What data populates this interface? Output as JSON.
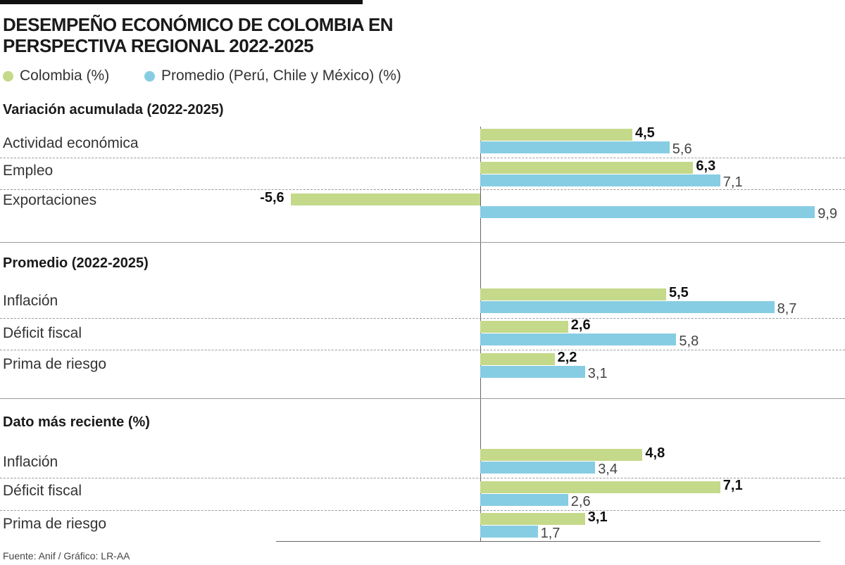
{
  "chart_data": {
    "type": "bar",
    "orientation": "horizontal",
    "title": "DESEMPEÑO ECONÓMICO DE COLOMBIA EN PERSPECTIVA REGIONAL 2022-2025",
    "legend": [
      {
        "name": "Colombia (%)",
        "color": "#c5d98a"
      },
      {
        "name": "Promedio (Perú, Chile y México) (%)",
        "color": "#86cde3"
      }
    ],
    "legend_placement": "top-left",
    "grid": false,
    "sections": [
      {
        "heading": "Variación acumulada (2022-2025)",
        "categories": [
          "Actividad económica",
          "Empleo",
          "Exportaciones"
        ],
        "series": [
          {
            "name": "Colombia (%)",
            "values": [
              4.5,
              6.3,
              -5.6
            ],
            "labels": [
              "4,5",
              "6,3",
              "-5,6"
            ]
          },
          {
            "name": "Promedio (Perú, Chile y México) (%)",
            "values": [
              5.6,
              7.1,
              9.9
            ],
            "labels": [
              "5,6",
              "7,1",
              "9,9"
            ]
          }
        ]
      },
      {
        "heading": "Promedio (2022-2025)",
        "categories": [
          "Inflación",
          "Déficit fiscal",
          "Prima de riesgo"
        ],
        "series": [
          {
            "name": "Colombia (%)",
            "values": [
              5.5,
              2.6,
              2.2
            ],
            "labels": [
              "5,5",
              "2,6",
              "2,2"
            ]
          },
          {
            "name": "Promedio (Perú, Chile y México) (%)",
            "values": [
              8.7,
              5.8,
              3.1
            ],
            "labels": [
              "8,7",
              "5,8",
              "3,1"
            ]
          }
        ]
      },
      {
        "heading": "Dato más reciente (%)",
        "categories": [
          "Inflación",
          "Déficit fiscal",
          "Prima de riesgo"
        ],
        "series": [
          {
            "name": "Colombia (%)",
            "values": [
              4.8,
              7.1,
              3.1
            ],
            "labels": [
              "4,8",
              "7,1",
              "3,1"
            ]
          },
          {
            "name": "Promedio (Perú, Chile y México) (%)",
            "values": [
              3.4,
              2.6,
              1.7
            ],
            "labels": [
              "3,4",
              "2,6",
              "1,7"
            ]
          }
        ]
      }
    ],
    "source": "Fuente: Anif / Gráfico: LR-AA"
  }
}
